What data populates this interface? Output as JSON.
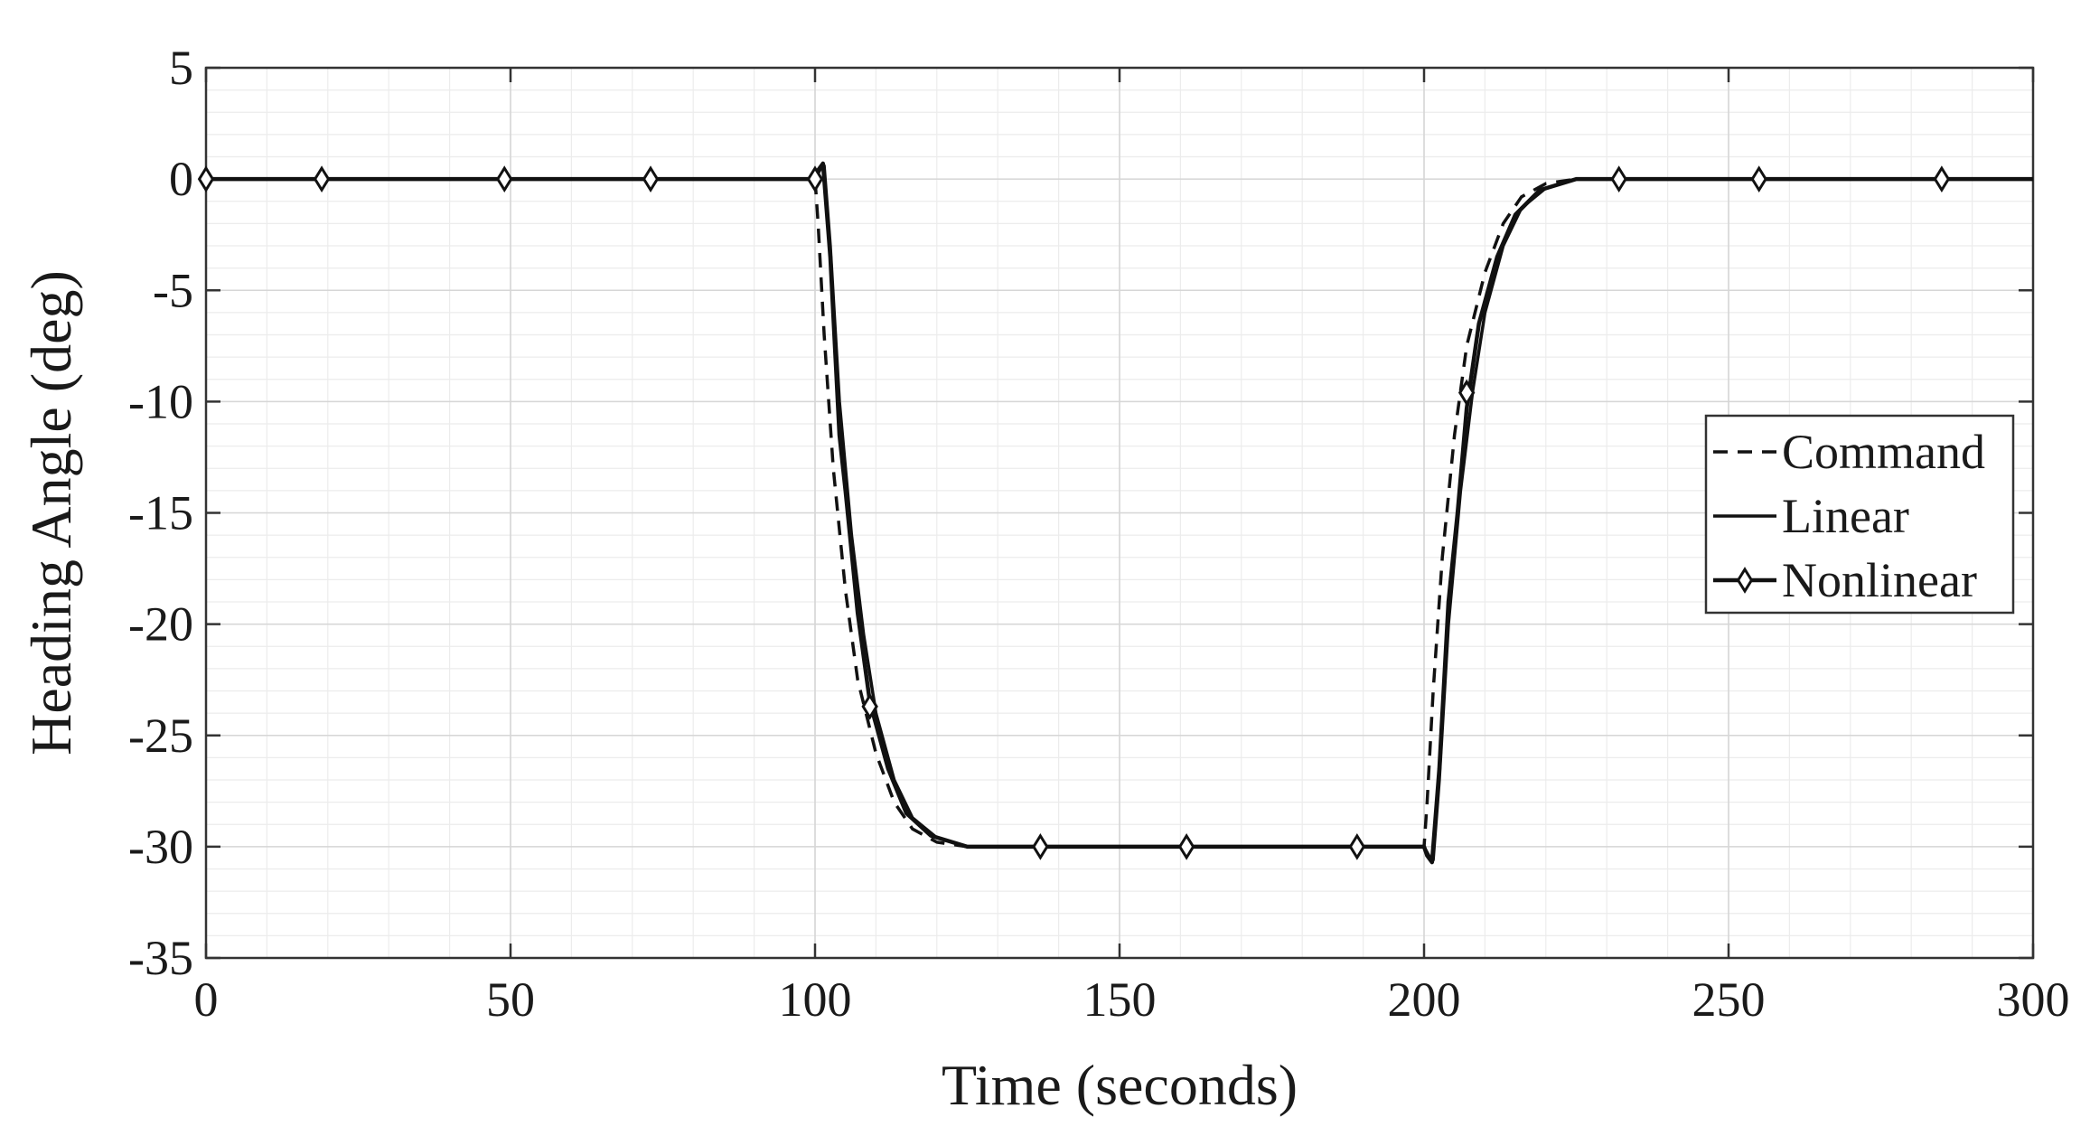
{
  "chart_data": {
    "type": "line",
    "title": "",
    "xlabel": "Time (seconds)",
    "ylabel": "Heading Angle (deg)",
    "xlim": [
      0,
      300
    ],
    "ylim": [
      -35,
      5
    ],
    "xticks": [
      0,
      50,
      100,
      150,
      200,
      250,
      300
    ],
    "yticks": [
      5,
      0,
      -5,
      -10,
      -15,
      -20,
      -25,
      -30,
      -35
    ],
    "grid": true,
    "minor_grid": true,
    "legend_position": "right",
    "series": [
      {
        "name": "Command",
        "style": "dashed",
        "color": "#111111",
        "points": [
          [
            0,
            0
          ],
          [
            100,
            0
          ],
          [
            100.5,
            -2
          ],
          [
            101.5,
            -7
          ],
          [
            103,
            -13
          ],
          [
            105,
            -18.5
          ],
          [
            107,
            -22.5
          ],
          [
            110,
            -25.8
          ],
          [
            113,
            -28
          ],
          [
            116,
            -29.2
          ],
          [
            120,
            -29.8
          ],
          [
            125,
            -30
          ],
          [
            200,
            -30
          ],
          [
            200.5,
            -28
          ],
          [
            201.5,
            -23
          ],
          [
            203,
            -17
          ],
          [
            205,
            -11.5
          ],
          [
            207,
            -7.5
          ],
          [
            210,
            -4.2
          ],
          [
            213,
            -2
          ],
          [
            216,
            -0.8
          ],
          [
            220,
            -0.2
          ],
          [
            225,
            0
          ],
          [
            300,
            0
          ]
        ]
      },
      {
        "name": "Linear",
        "style": "solid",
        "color": "#111111",
        "points": [
          [
            0,
            0
          ],
          [
            100,
            0
          ],
          [
            101,
            0.5
          ],
          [
            101.5,
            0.6
          ],
          [
            102.5,
            -3
          ],
          [
            104,
            -10
          ],
          [
            106,
            -16
          ],
          [
            108,
            -20.5
          ],
          [
            110,
            -24
          ],
          [
            113,
            -27
          ],
          [
            116,
            -28.7
          ],
          [
            120,
            -29.6
          ],
          [
            125,
            -30
          ],
          [
            200,
            -30
          ],
          [
            201,
            -30.5
          ],
          [
            201.5,
            -30.6
          ],
          [
            202.5,
            -27
          ],
          [
            204,
            -20
          ],
          [
            206,
            -14
          ],
          [
            208,
            -9.5
          ],
          [
            210,
            -6
          ],
          [
            213,
            -3
          ],
          [
            216,
            -1.3
          ],
          [
            220,
            -0.4
          ],
          [
            225,
            0
          ],
          [
            300,
            0
          ]
        ]
      },
      {
        "name": "Nonlinear",
        "style": "solid-diamond",
        "color": "#111111",
        "points": [
          [
            0,
            0
          ],
          [
            100,
            0
          ],
          [
            100.5,
            0.4
          ],
          [
            101.3,
            0.7
          ],
          [
            102.5,
            -3.5
          ],
          [
            104,
            -11.5
          ],
          [
            105,
            -14
          ],
          [
            107,
            -19.5
          ],
          [
            109,
            -23.5
          ],
          [
            112,
            -26.5
          ],
          [
            115,
            -28.5
          ],
          [
            119,
            -29.5
          ],
          [
            125,
            -30
          ],
          [
            200,
            -30
          ],
          [
            200.5,
            -30.4
          ],
          [
            201.3,
            -30.7
          ],
          [
            202.5,
            -26.5
          ],
          [
            204,
            -19
          ],
          [
            205.5,
            -15
          ],
          [
            207,
            -10.3
          ],
          [
            209,
            -6.5
          ],
          [
            212,
            -3.5
          ],
          [
            215,
            -1.6
          ],
          [
            219,
            -0.5
          ],
          [
            225,
            0
          ],
          [
            300,
            0
          ]
        ],
        "markers": [
          [
            0,
            0
          ],
          [
            19,
            0
          ],
          [
            49,
            0
          ],
          [
            73,
            0
          ],
          [
            100,
            0
          ],
          [
            109,
            -23.7
          ],
          [
            137,
            -30
          ],
          [
            161,
            -30
          ],
          [
            189,
            -30
          ],
          [
            207,
            -9.6
          ],
          [
            232,
            0
          ],
          [
            255,
            0
          ],
          [
            285,
            0
          ]
        ]
      }
    ]
  }
}
